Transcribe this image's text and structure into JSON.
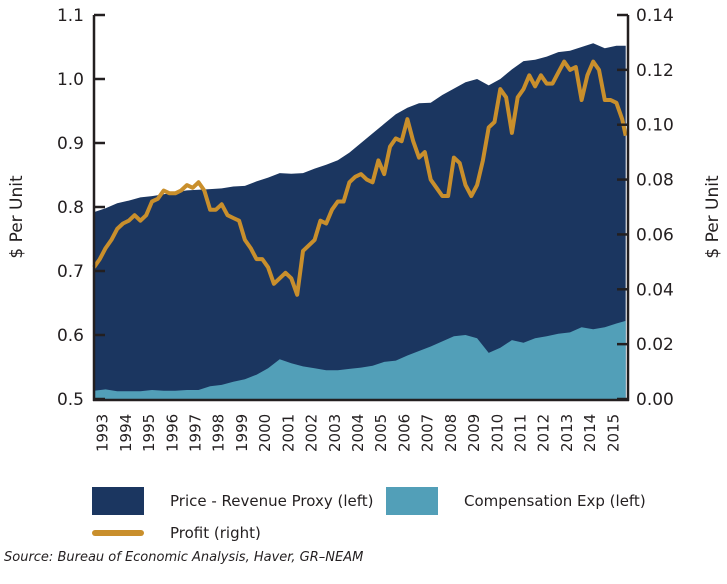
{
  "chart_data": {
    "type": "area",
    "title": "",
    "source": "Source: Bureau of Economic Analysis, Haver, GR–NEAM",
    "ylabel_left": "$ Per Unit",
    "ylabel_right": "$ Per Unit",
    "ylim_left": [
      0.5,
      1.1
    ],
    "ylim_right": [
      0.0,
      0.14
    ],
    "yticks_left": [
      "0.5",
      "0.6",
      "0.7",
      "0.8",
      "0.9",
      "1.0",
      "1.1"
    ],
    "yticks_right": [
      "0.00",
      "0.02",
      "0.04",
      "0.06",
      "0.08",
      "0.10",
      "0.12",
      "0.14"
    ],
    "x_range": [
      1993.0,
      2016.0
    ],
    "x_tick_labels": [
      "1993",
      "1994",
      "1995",
      "1996",
      "1997",
      "1998",
      "1999",
      "2000",
      "2001",
      "2002",
      "2003",
      "2004",
      "2005",
      "2006",
      "2007",
      "2008",
      "2009",
      "2010",
      "2011",
      "2012",
      "2013",
      "2014",
      "2015"
    ],
    "grid": false,
    "legend_position": "bottom",
    "colors": {
      "price": "#1b3660",
      "compensation": "#529fb8",
      "profit": "#c98f2c",
      "axis": "#231f20"
    },
    "series": [
      {
        "name": "Price - Revenue Proxy (left)",
        "axis": "left",
        "kind": "area",
        "x": [
          1993.0,
          1993.5,
          1994.0,
          1994.5,
          1995.0,
          1995.5,
          1996.0,
          1996.5,
          1997.0,
          1997.5,
          1998.0,
          1998.5,
          1999.0,
          1999.5,
          2000.0,
          2000.5,
          2001.0,
          2001.5,
          2002.0,
          2002.5,
          2003.0,
          2003.5,
          2004.0,
          2004.5,
          2005.0,
          2005.5,
          2006.0,
          2006.5,
          2007.0,
          2007.5,
          2008.0,
          2008.5,
          2009.0,
          2009.5,
          2010.0,
          2010.5,
          2011.0,
          2011.5,
          2012.0,
          2012.5,
          2013.0,
          2013.5,
          2014.0,
          2014.5,
          2015.0,
          2015.5,
          2015.9
        ],
        "values": [
          0.792,
          0.798,
          0.806,
          0.81,
          0.815,
          0.817,
          0.82,
          0.823,
          0.826,
          0.827,
          0.828,
          0.829,
          0.832,
          0.833,
          0.84,
          0.846,
          0.853,
          0.852,
          0.853,
          0.86,
          0.866,
          0.873,
          0.885,
          0.9,
          0.915,
          0.93,
          0.945,
          0.955,
          0.962,
          0.963,
          0.975,
          0.985,
          0.995,
          1.0,
          0.99,
          1.0,
          1.015,
          1.028,
          1.03,
          1.035,
          1.042,
          1.044,
          1.05,
          1.056,
          1.048,
          1.052,
          1.052
        ]
      },
      {
        "name": "Compensation Exp (left)",
        "axis": "left",
        "kind": "area",
        "x": [
          1993.0,
          1993.5,
          1994.0,
          1994.5,
          1995.0,
          1995.5,
          1996.0,
          1996.5,
          1997.0,
          1997.5,
          1998.0,
          1998.5,
          1999.0,
          1999.5,
          2000.0,
          2000.5,
          2001.0,
          2001.5,
          2002.0,
          2002.5,
          2003.0,
          2003.5,
          2004.0,
          2004.5,
          2005.0,
          2005.5,
          2006.0,
          2006.5,
          2007.0,
          2007.5,
          2008.0,
          2008.5,
          2009.0,
          2009.5,
          2010.0,
          2010.5,
          2011.0,
          2011.5,
          2012.0,
          2012.5,
          2013.0,
          2013.5,
          2014.0,
          2014.5,
          2015.0,
          2015.5,
          2015.9
        ],
        "values": [
          0.513,
          0.515,
          0.512,
          0.512,
          0.512,
          0.514,
          0.513,
          0.513,
          0.514,
          0.514,
          0.52,
          0.522,
          0.527,
          0.531,
          0.538,
          0.548,
          0.562,
          0.556,
          0.551,
          0.548,
          0.545,
          0.545,
          0.547,
          0.549,
          0.552,
          0.558,
          0.56,
          0.568,
          0.575,
          0.582,
          0.59,
          0.598,
          0.6,
          0.595,
          0.572,
          0.58,
          0.592,
          0.588,
          0.595,
          0.598,
          0.602,
          0.604,
          0.612,
          0.609,
          0.612,
          0.618,
          0.622
        ]
      },
      {
        "name": "Profit (right)",
        "axis": "right",
        "kind": "line",
        "x": [
          1993.0,
          1993.25,
          1993.5,
          1993.75,
          1994.0,
          1994.25,
          1994.5,
          1994.75,
          1995.0,
          1995.25,
          1995.5,
          1995.75,
          1996.0,
          1996.25,
          1996.5,
          1996.75,
          1997.0,
          1997.25,
          1997.5,
          1997.75,
          1998.0,
          1998.25,
          1998.5,
          1998.75,
          1999.0,
          1999.25,
          1999.5,
          1999.75,
          2000.0,
          2000.25,
          2000.5,
          2000.75,
          2001.0,
          2001.25,
          2001.5,
          2001.75,
          2002.0,
          2002.25,
          2002.5,
          2002.75,
          2003.0,
          2003.25,
          2003.5,
          2003.75,
          2004.0,
          2004.25,
          2004.5,
          2004.75,
          2005.0,
          2005.25,
          2005.5,
          2005.75,
          2006.0,
          2006.25,
          2006.5,
          2006.75,
          2007.0,
          2007.25,
          2007.5,
          2007.75,
          2008.0,
          2008.25,
          2008.5,
          2008.75,
          2009.0,
          2009.25,
          2009.5,
          2009.75,
          2010.0,
          2010.25,
          2010.5,
          2010.75,
          2011.0,
          2011.25,
          2011.5,
          2011.75,
          2012.0,
          2012.25,
          2012.5,
          2012.75,
          2013.0,
          2013.25,
          2013.5,
          2013.75,
          2014.0,
          2014.25,
          2014.5,
          2014.75,
          2015.0,
          2015.25,
          2015.5,
          2015.75,
          2015.9
        ],
        "values": [
          0.048,
          0.051,
          0.055,
          0.058,
          0.062,
          0.064,
          0.065,
          0.067,
          0.065,
          0.067,
          0.072,
          0.073,
          0.076,
          0.075,
          0.075,
          0.076,
          0.078,
          0.077,
          0.079,
          0.076,
          0.069,
          0.069,
          0.071,
          0.067,
          0.066,
          0.065,
          0.058,
          0.055,
          0.051,
          0.051,
          0.048,
          0.042,
          0.044,
          0.046,
          0.044,
          0.038,
          0.054,
          0.056,
          0.058,
          0.065,
          0.064,
          0.069,
          0.072,
          0.072,
          0.079,
          0.081,
          0.082,
          0.08,
          0.079,
          0.087,
          0.082,
          0.092,
          0.095,
          0.094,
          0.102,
          0.094,
          0.088,
          0.09,
          0.08,
          0.077,
          0.074,
          0.074,
          0.088,
          0.086,
          0.078,
          0.074,
          0.078,
          0.087,
          0.099,
          0.101,
          0.113,
          0.11,
          0.097,
          0.11,
          0.113,
          0.118,
          0.114,
          0.118,
          0.115,
          0.115,
          0.119,
          0.123,
          0.12,
          0.121,
          0.109,
          0.118,
          0.123,
          0.12,
          0.109,
          0.109,
          0.108,
          0.102,
          0.096
        ]
      }
    ]
  },
  "legend": {
    "price_label": "Price - Revenue Proxy (left)",
    "compensation_label": "Compensation Exp (left)",
    "profit_label": "Profit (right)"
  }
}
